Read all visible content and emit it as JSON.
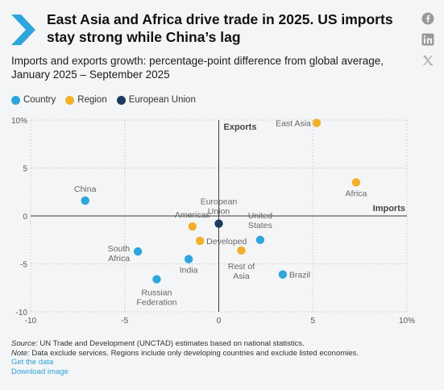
{
  "header": {
    "title": "East Asia and Africa drive trade in 2025. US imports stay strong while China’s lag",
    "subtitle": "Imports and exports growth: percentage-point difference from global average, January 2025 – September 2025"
  },
  "social": [
    {
      "icon": "facebook-icon"
    },
    {
      "icon": "linkedin-icon"
    },
    {
      "icon": "x-twitter-icon"
    }
  ],
  "colors": {
    "country": "#2ea6db",
    "region": "#f2b02b",
    "eu": "#1a3a5e",
    "accent": "#2ea6db"
  },
  "chart_data": {
    "type": "scatter",
    "xlim": [
      -10,
      10
    ],
    "ylim": [
      -10,
      10
    ],
    "x_ticks": [
      "-10",
      "-5",
      "0",
      "5",
      "10%"
    ],
    "y_ticks": [
      "10%",
      "5",
      "0",
      "-5",
      "-10"
    ],
    "x_axis_label": "Imports",
    "y_axis_label": "Exports",
    "grid": true,
    "legend_position": "top-left",
    "legend": [
      {
        "name": "Country",
        "color": "#2ea6db"
      },
      {
        "name": "Region",
        "color": "#f2b02b"
      },
      {
        "name": "European Union",
        "color": "#1a3a5e"
      }
    ],
    "points": [
      {
        "label": "China",
        "group": "Country",
        "x": -7.1,
        "y": 1.6
      },
      {
        "label": "South Africa",
        "group": "Country",
        "x": -4.3,
        "y": -3.7
      },
      {
        "label": "Russian Federation",
        "group": "Country",
        "x": -3.3,
        "y": -6.6
      },
      {
        "label": "India",
        "group": "Country",
        "x": -1.6,
        "y": -4.5
      },
      {
        "label": "United States",
        "group": "Country",
        "x": 2.2,
        "y": -2.5
      },
      {
        "label": "Brazil",
        "group": "Country",
        "x": 3.4,
        "y": -6.1
      },
      {
        "label": "East Asia",
        "group": "Region",
        "x": 5.2,
        "y": 9.7
      },
      {
        "label": "Africa",
        "group": "Region",
        "x": 7.3,
        "y": 3.5
      },
      {
        "label": "Americas",
        "group": "Region",
        "x": -1.4,
        "y": -1.1
      },
      {
        "label": "Developed",
        "group": "Region",
        "x": -1.0,
        "y": -2.6
      },
      {
        "label": "Rest of Asia",
        "group": "Region",
        "x": 1.2,
        "y": -3.6
      },
      {
        "label": "European Union",
        "group": "European Union",
        "x": 0.0,
        "y": -0.8
      }
    ]
  },
  "footer": {
    "source_label": "Source:",
    "source_text": "UN Trade and Development (UNCTAD) estimates based on national statistics.",
    "note_label": "Note:",
    "note_text": "Data exclude services. Regions include only developing countries and exclude listed economies.",
    "get_data": "Get the data",
    "download": "Download image"
  }
}
